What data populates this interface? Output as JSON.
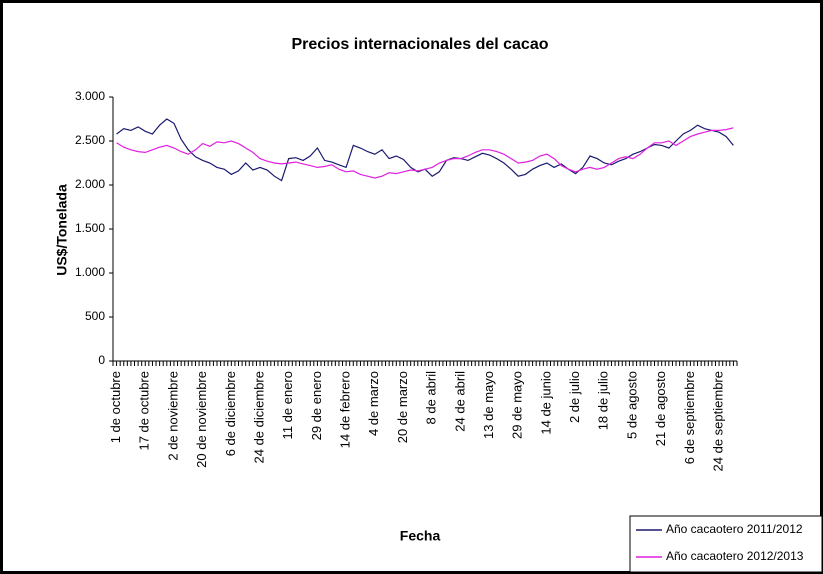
{
  "chart_data": {
    "type": "line",
    "title": "Precios internacionales del cacao",
    "xlabel": "Fecha",
    "ylabel": "US$/Tonelada",
    "categories": [
      "1 de octubre",
      null,
      null,
      null,
      "17 de octubre",
      null,
      null,
      null,
      "2 de noviembre",
      null,
      null,
      null,
      "20 de noviembre",
      null,
      null,
      null,
      "6 de diciembre",
      null,
      null,
      null,
      "24 de diciembre",
      null,
      null,
      null,
      "11 de enero",
      null,
      null,
      null,
      "29 de enero",
      null,
      null,
      null,
      "14 de febrero",
      null,
      null,
      null,
      "4 de marzo",
      null,
      null,
      null,
      "20 de marzo",
      null,
      null,
      null,
      "8 de abril",
      null,
      null,
      null,
      "24 de abril",
      null,
      null,
      null,
      "13 de mayo",
      null,
      null,
      null,
      "29 de mayo",
      null,
      null,
      null,
      "14 de junio",
      null,
      null,
      null,
      "2 de julio",
      null,
      null,
      null,
      "18 de julio",
      null,
      null,
      null,
      "5 de agosto",
      null,
      null,
      null,
      "21 de agosto",
      null,
      null,
      null,
      "6 de septiembre",
      null,
      null,
      null,
      "24 de septiembre",
      null,
      null
    ],
    "series": [
      {
        "name": "Año cacaotero 2011/2012",
        "color": "#1a1a6e",
        "values": [
          2580,
          2640,
          2620,
          2660,
          2610,
          2580,
          2680,
          2750,
          2700,
          2520,
          2400,
          2320,
          2280,
          2250,
          2200,
          2180,
          2120,
          2160,
          2250,
          2170,
          2200,
          2170,
          2100,
          2050,
          2300,
          2310,
          2280,
          2330,
          2420,
          2280,
          2260,
          2230,
          2200,
          2450,
          2420,
          2380,
          2350,
          2400,
          2300,
          2330,
          2290,
          2200,
          2150,
          2180,
          2100,
          2150,
          2280,
          2310,
          2300,
          2280,
          2320,
          2360,
          2340,
          2300,
          2250,
          2180,
          2100,
          2120,
          2180,
          2220,
          2250,
          2200,
          2240,
          2180,
          2130,
          2200,
          2330,
          2300,
          2250,
          2230,
          2270,
          2300,
          2350,
          2380,
          2420,
          2460,
          2450,
          2420,
          2500,
          2580,
          2620,
          2680,
          2640,
          2620,
          2600,
          2550,
          2450
        ]
      },
      {
        "name": "Año cacaotero 2012/2013",
        "color": "#e020e0",
        "values": [
          2480,
          2430,
          2400,
          2380,
          2370,
          2400,
          2430,
          2450,
          2420,
          2380,
          2350,
          2400,
          2470,
          2440,
          2490,
          2480,
          2500,
          2470,
          2420,
          2370,
          2300,
          2270,
          2250,
          2240,
          2250,
          2260,
          2240,
          2220,
          2200,
          2210,
          2230,
          2180,
          2150,
          2160,
          2120,
          2100,
          2080,
          2100,
          2140,
          2130,
          2150,
          2170,
          2160,
          2180,
          2200,
          2250,
          2280,
          2300,
          2300,
          2330,
          2370,
          2400,
          2400,
          2380,
          2350,
          2300,
          2250,
          2260,
          2280,
          2330,
          2350,
          2300,
          2220,
          2180,
          2150,
          2180,
          2200,
          2180,
          2200,
          2250,
          2300,
          2320,
          2300,
          2350,
          2420,
          2480,
          2480,
          2500,
          2450,
          2500,
          2550,
          2580,
          2600,
          2620,
          2620,
          2630,
          2650
        ]
      }
    ],
    "ylim": [
      0,
      3000
    ],
    "yticks": [
      0,
      500,
      {
        "value": 1000,
        "label": "1.000"
      },
      {
        "value": 1500,
        "label": "1.500"
      },
      {
        "value": 2000,
        "label": "2.000"
      },
      {
        "value": 2500,
        "label": "2.500"
      },
      {
        "value": 3000,
        "label": "3.000"
      }
    ],
    "grid": false,
    "legend": "lower right"
  }
}
